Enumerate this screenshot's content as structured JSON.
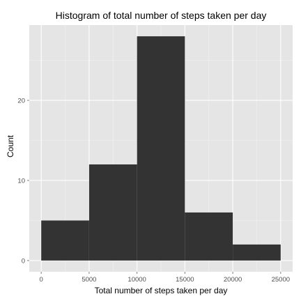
{
  "chart_data": {
    "type": "bar",
    "title": "Histogram of total number of steps taken per day",
    "xlabel": "Total number of steps taken per day",
    "ylabel": "Count",
    "bins": [
      {
        "x0": 0,
        "x1": 5000,
        "count": 5
      },
      {
        "x0": 5000,
        "x1": 10000,
        "count": 12
      },
      {
        "x0": 10000,
        "x1": 15000,
        "count": 28
      },
      {
        "x0": 15000,
        "x1": 20000,
        "count": 6
      },
      {
        "x0": 20000,
        "x1": 25000,
        "count": 2
      }
    ],
    "xticks": [
      0,
      5000,
      10000,
      15000,
      20000,
      25000
    ],
    "yticks": [
      0,
      10,
      20
    ],
    "xlim": [
      -1250,
      26250
    ],
    "ylim": [
      -1.4,
      29.4
    ],
    "grid": true,
    "colors": {
      "panel": "#e5e5e5",
      "grid_major": "#ffffff",
      "grid_minor": "#f2f2f2",
      "bar": "#333333"
    }
  }
}
